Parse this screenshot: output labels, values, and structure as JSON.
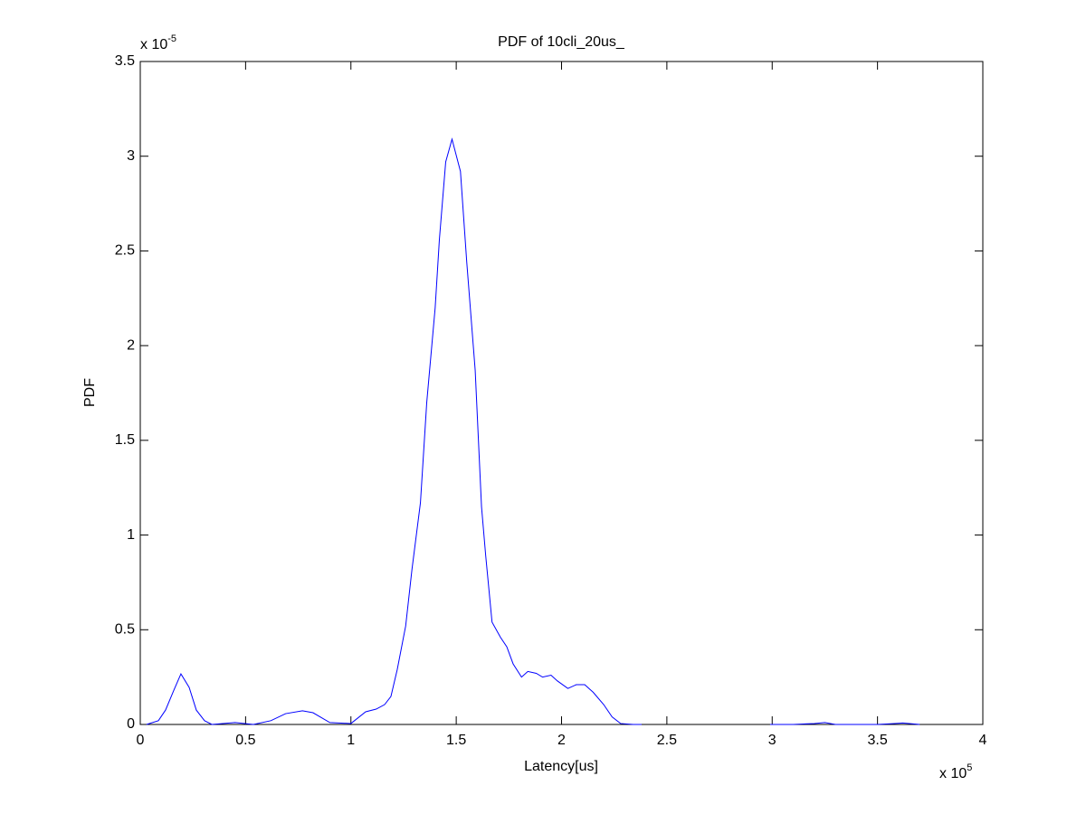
{
  "chart_data": {
    "type": "line",
    "title": "PDF of 10cli_20us_",
    "xlabel": "Latency[us]",
    "ylabel": "PDF",
    "x_multiplier": {
      "base": "x 10",
      "exponent": "5"
    },
    "y_multiplier": {
      "base": "x 10",
      "exponent": "-5"
    },
    "xlim": [
      0,
      4
    ],
    "ylim": [
      0,
      3.5
    ],
    "xticks": [
      0,
      0.5,
      1,
      1.5,
      2,
      2.5,
      3,
      3.5,
      4
    ],
    "yticks": [
      0,
      0.5,
      1,
      1.5,
      2,
      2.5,
      3,
      3.5
    ],
    "grid": false,
    "x": [
      0.03,
      0.086,
      0.12,
      0.159,
      0.193,
      0.232,
      0.266,
      0.305,
      0.34,
      0.45,
      0.537,
      0.62,
      0.69,
      0.77,
      0.82,
      0.9,
      1.0,
      1.07,
      1.12,
      1.16,
      1.19,
      1.22,
      1.26,
      1.29,
      1.33,
      1.36,
      1.4,
      1.42,
      1.45,
      1.48,
      1.52,
      1.55,
      1.59,
      1.62,
      1.64,
      1.67,
      1.71,
      1.74,
      1.77,
      1.81,
      1.84,
      1.88,
      1.91,
      1.95,
      1.98,
      2.03,
      2.07,
      2.11,
      2.15,
      2.2,
      2.24,
      2.28,
      2.34,
      2.38,
      2.6,
      2.99,
      3.1,
      3.2,
      3.25,
      3.3,
      3.5,
      3.58,
      3.62,
      3.7
    ],
    "series": [
      {
        "color": "#0000ff",
        "values": [
          0,
          0.02,
          0.076,
          0.18,
          0.267,
          0.196,
          0.076,
          0.02,
          0,
          0.01,
          0,
          0.02,
          0.057,
          0.072,
          0.062,
          0.01,
          0.005,
          0.067,
          0.081,
          0.105,
          0.148,
          0.29,
          0.52,
          0.82,
          1.17,
          1.7,
          2.2,
          2.56,
          2.97,
          3.09,
          2.92,
          2.44,
          1.87,
          1.15,
          0.89,
          0.54,
          0.46,
          0.41,
          0.32,
          0.25,
          0.28,
          0.27,
          0.25,
          0.26,
          0.23,
          0.19,
          0.21,
          0.21,
          0.17,
          0.105,
          0.04,
          0.005,
          0,
          0,
          null,
          0,
          0,
          0.005,
          0.01,
          0,
          0,
          0.005,
          0.008,
          0
        ]
      }
    ]
  }
}
